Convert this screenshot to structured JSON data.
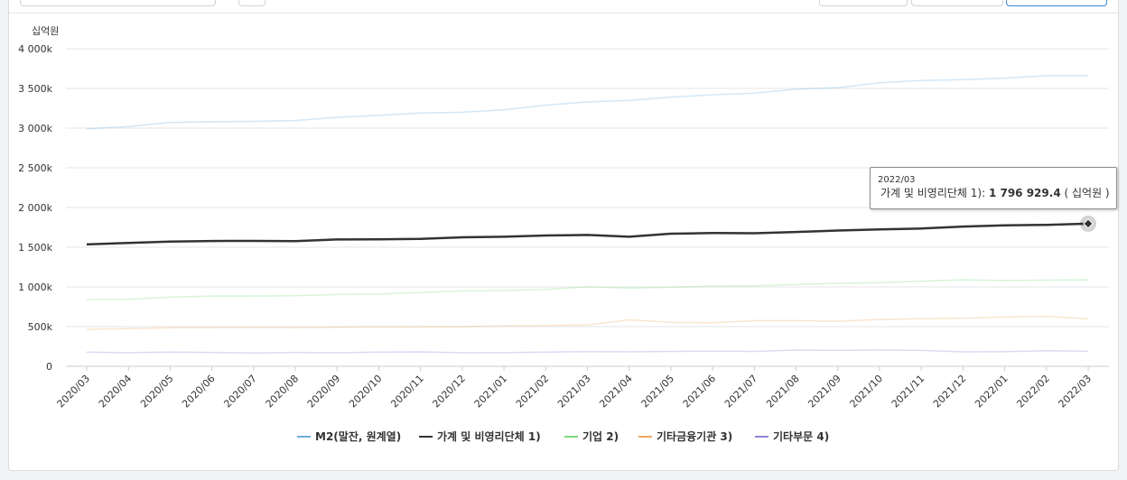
{
  "chart_data": {
    "type": "line",
    "ylabel": "십억원",
    "ylim": [
      0,
      4000
    ],
    "yticks": [
      {
        "value": 0,
        "label": "0"
      },
      {
        "value": 500,
        "label": "500k"
      },
      {
        "value": 1000,
        "label": "1 000k"
      },
      {
        "value": 1500,
        "label": "1 500k"
      },
      {
        "value": 2000,
        "label": "2 000k"
      },
      {
        "value": 2500,
        "label": "2 500k"
      },
      {
        "value": 3000,
        "label": "3 000k"
      },
      {
        "value": 3500,
        "label": "3 500k"
      },
      {
        "value": 4000,
        "label": "4 000k"
      }
    ],
    "categories": [
      "2020/03",
      "2020/04",
      "2020/05",
      "2020/06",
      "2020/07",
      "2020/08",
      "2020/09",
      "2020/10",
      "2020/11",
      "2020/12",
      "2021/01",
      "2021/02",
      "2021/03",
      "2021/04",
      "2021/05",
      "2021/06",
      "2021/07",
      "2021/08",
      "2021/09",
      "2021/10",
      "2021/11",
      "2021/12",
      "2022/01",
      "2022/02",
      "2022/03"
    ],
    "grid": true,
    "legend_position": "bottom",
    "series": [
      {
        "name": "M2(말잔, 원계열)",
        "color": "#6aaee0",
        "faded": true,
        "values": [
          2990,
          3020,
          3070,
          3080,
          3085,
          3095,
          3135,
          3160,
          3190,
          3200,
          3230,
          3290,
          3330,
          3350,
          3390,
          3420,
          3440,
          3490,
          3510,
          3570,
          3600,
          3610,
          3630,
          3660,
          3660
        ]
      },
      {
        "name": "가계 및 비영리단체 1)",
        "color": "#333333",
        "faded": false,
        "values": [
          1535,
          1555,
          1570,
          1578,
          1580,
          1576,
          1598,
          1600,
          1605,
          1625,
          1632,
          1648,
          1655,
          1632,
          1670,
          1678,
          1676,
          1692,
          1710,
          1725,
          1735,
          1760,
          1775,
          1782,
          1796.9
        ]
      },
      {
        "name": "기업 2)",
        "color": "#7ed97e",
        "faded": true,
        "values": [
          840,
          845,
          870,
          885,
          885,
          890,
          905,
          910,
          930,
          950,
          955,
          970,
          1000,
          985,
          995,
          1010,
          1015,
          1030,
          1045,
          1055,
          1070,
          1090,
          1080,
          1085,
          1090
        ]
      },
      {
        "name": "기타금융기관 3)",
        "color": "#f0a860",
        "faded": true,
        "values": [
          465,
          475,
          485,
          488,
          490,
          488,
          492,
          495,
          498,
          500,
          508,
          515,
          520,
          585,
          555,
          548,
          575,
          575,
          568,
          590,
          600,
          605,
          620,
          630,
          598
        ]
      },
      {
        "name": "기타부문 4)",
        "color": "#8f85d8",
        "faded": true,
        "values": [
          178,
          172,
          180,
          175,
          168,
          175,
          170,
          178,
          182,
          170,
          172,
          178,
          185,
          183,
          188,
          190,
          188,
          205,
          200,
          205,
          200,
          182,
          185,
          195,
          190
        ]
      }
    ]
  },
  "tooltip": {
    "date": "2022/03",
    "series_label": "가계 및 비영리단체 1)",
    "value": "1 796 929.4",
    "unit": "( 십억원 )"
  }
}
